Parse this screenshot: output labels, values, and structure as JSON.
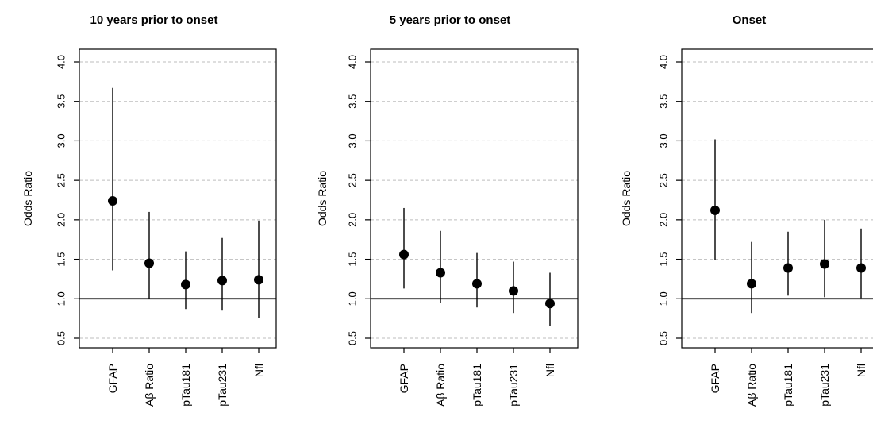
{
  "chart_data": [
    {
      "type": "scatter",
      "title": "10 years prior to onset",
      "ylabel": "Odds Ratio",
      "ylim": [
        0.5,
        4.0
      ],
      "yticks": [
        "0.5",
        "1.0",
        "1.5",
        "2.0",
        "2.5",
        "3.0",
        "3.5",
        "4.0"
      ],
      "reference_line": 1.0,
      "grid": true,
      "categories": [
        "GFAP",
        "Aβ Ratio",
        "pTau181",
        "pTau231",
        "Nfl"
      ],
      "values": [
        2.24,
        1.45,
        1.18,
        1.23,
        1.24
      ],
      "ci_lower": [
        1.36,
        1.0,
        0.87,
        0.85,
        0.76
      ],
      "ci_upper": [
        3.67,
        2.1,
        1.6,
        1.77,
        1.99
      ]
    },
    {
      "type": "scatter",
      "title": "5 years prior to onset",
      "ylabel": "Odds Ratio",
      "ylim": [
        0.5,
        4.0
      ],
      "yticks": [
        "0.5",
        "1.0",
        "1.5",
        "2.0",
        "2.5",
        "3.0",
        "3.5",
        "4.0"
      ],
      "reference_line": 1.0,
      "grid": true,
      "categories": [
        "GFAP",
        "Aβ Ratio",
        "pTau181",
        "pTau231",
        "Nfl"
      ],
      "values": [
        1.56,
        1.33,
        1.19,
        1.1,
        0.94
      ],
      "ci_lower": [
        1.13,
        0.95,
        0.89,
        0.82,
        0.66
      ],
      "ci_upper": [
        2.15,
        1.86,
        1.58,
        1.47,
        1.33
      ]
    },
    {
      "type": "scatter",
      "title": "Onset",
      "ylabel": "Odds Ratio",
      "ylim": [
        0.5,
        4.0
      ],
      "yticks": [
        "0.5",
        "1.0",
        "1.5",
        "2.0",
        "2.5",
        "3.0",
        "3.5",
        "4.0"
      ],
      "reference_line": 1.0,
      "grid": true,
      "categories": [
        "GFAP",
        "Aβ Ratio",
        "pTau181",
        "pTau231",
        "Nfl"
      ],
      "values": [
        2.12,
        1.19,
        1.39,
        1.44,
        1.39
      ],
      "ci_lower": [
        1.49,
        0.82,
        1.04,
        1.02,
        1.01
      ],
      "ci_upper": [
        3.02,
        1.72,
        1.85,
        2.0,
        1.89
      ]
    }
  ]
}
